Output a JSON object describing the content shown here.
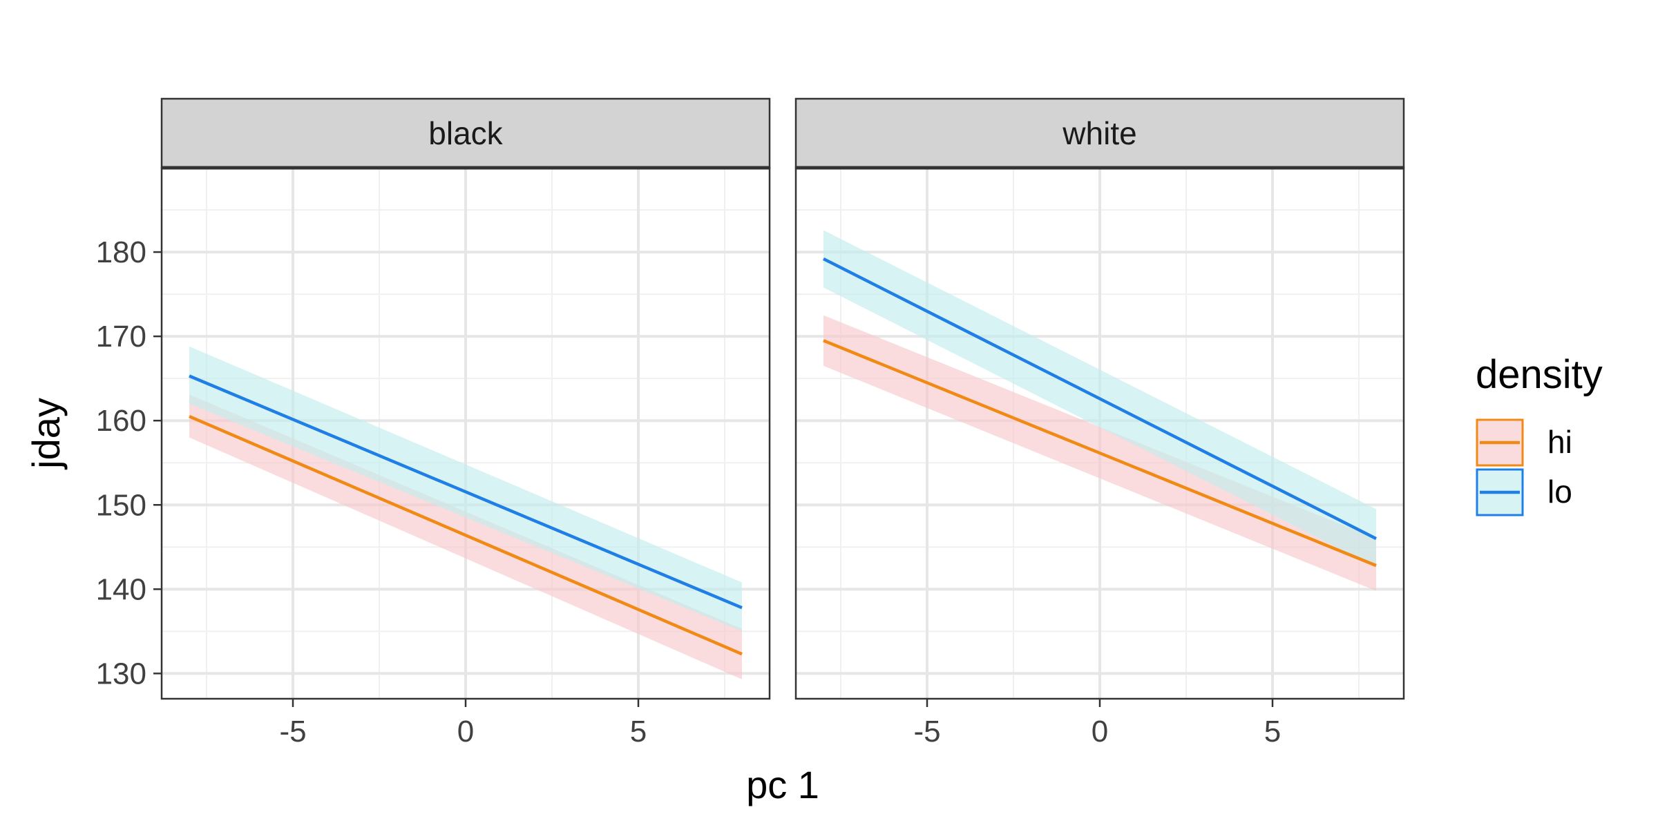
{
  "colors": {
    "hi": "#f08a14",
    "lo": "#1f7fe6",
    "hi_ribbon": "#f8c9cc",
    "lo_ribbon": "#c3ecec",
    "strip_fill": "#d3d3d3",
    "panel_border": "#333333",
    "grid_major": "#e6e6e6",
    "grid_minor": "#f0f0f0",
    "text": "#404040"
  },
  "chart_data": {
    "type": "line",
    "facet_variable": "",
    "xlabel": "pc 1",
    "ylabel": "jday",
    "xlim": [
      -8.8,
      8.8
    ],
    "ylim": [
      127,
      190
    ],
    "x_ticks": [
      -5,
      0,
      5
    ],
    "x_tick_labels": [
      "-5",
      "0",
      "5"
    ],
    "y_ticks": [
      130,
      140,
      150,
      160,
      170,
      180
    ],
    "y_tick_labels": [
      "130",
      "140",
      "150",
      "160",
      "170",
      "180"
    ],
    "grid": true,
    "legend": {
      "title": "density",
      "placement": "right",
      "entries": [
        {
          "key": "hi",
          "label": "hi"
        },
        {
          "key": "lo",
          "label": "lo"
        }
      ]
    },
    "panels": [
      {
        "label": "black",
        "series": [
          {
            "name": "hi",
            "x": [
              -8,
              8
            ],
            "y": [
              160.5,
              132.3
            ],
            "lower": [
              158.0,
              129.3
            ],
            "upper": [
              163.1,
              135.3
            ]
          },
          {
            "name": "lo",
            "x": [
              -8,
              8
            ],
            "y": [
              165.3,
              137.8
            ],
            "lower": [
              162.0,
              135.0
            ],
            "upper": [
              168.8,
              140.8
            ]
          }
        ]
      },
      {
        "label": "white",
        "series": [
          {
            "name": "hi",
            "x": [
              -8,
              8
            ],
            "y": [
              169.5,
              142.8
            ],
            "lower": [
              166.5,
              139.8
            ],
            "upper": [
              172.5,
              146.0
            ]
          },
          {
            "name": "lo",
            "x": [
              -8,
              8
            ],
            "y": [
              179.2,
              146.0
            ],
            "lower": [
              175.8,
              142.6
            ],
            "upper": [
              182.6,
              149.5
            ]
          }
        ]
      }
    ]
  }
}
